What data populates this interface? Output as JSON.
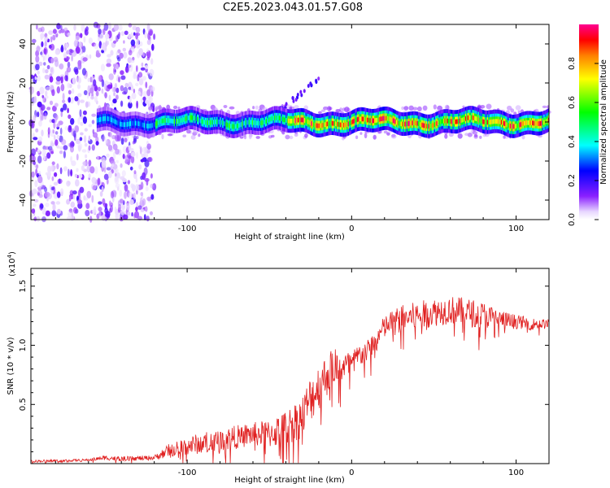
{
  "title": "C2E5.2023.043.01.57.G08",
  "chart_data": [
    {
      "type": "heatmap",
      "xlabel": "Height of straight line (km)",
      "ylabel": "Frequency (Hz)",
      "xlim": [
        -195,
        120
      ],
      "ylim": [
        -50,
        50
      ],
      "x_ticks": [
        -100,
        0,
        100
      ],
      "y_ticks": [
        -40,
        -20,
        0,
        20,
        40
      ],
      "colorbar": {
        "label": "Normalized spectral amplitude",
        "range": [
          0,
          1
        ],
        "ticks": [
          0.0,
          0.2,
          0.4,
          0.6,
          0.8
        ],
        "colormap": [
          "#ffffff",
          "#7a00ff",
          "#0000ff",
          "#00ffff",
          "#00ff00",
          "#ffff00",
          "#ff8000",
          "#ff0000",
          "#ff0090"
        ]
      },
      "description_points": {
        "noise_region_x": [
          -195,
          -120
        ],
        "trace_center_freq_hz": 0,
        "trace_x_start": -155,
        "secondary_trace": {
          "x": [
            -45,
            -20
          ],
          "y": [
            5,
            22
          ]
        },
        "peak_amplitude_region_x": [
          -40,
          100
        ]
      }
    },
    {
      "type": "line",
      "xlabel": "Height of straight line (km)",
      "ylabel": "SNR (10 * v/v)",
      "y_scale_label_base": "(x10",
      "y_scale_label_exp": "4",
      "y_scale_label_close": ")",
      "xlim": [
        -195,
        120
      ],
      "ylim": [
        0,
        1.65
      ],
      "x_ticks": [
        -100,
        0,
        100
      ],
      "y_ticks": [
        0.5,
        1.0,
        1.5
      ],
      "y_tick_labels": [
        "0.5",
        "1.0",
        "1.5"
      ],
      "series": [
        {
          "color": "#e02020",
          "x": [
            -195,
            -160,
            -150,
            -140,
            -120,
            -110,
            -100,
            -80,
            -60,
            -50,
            -40,
            -30,
            -25,
            -20,
            -15,
            -10,
            -5,
            0,
            5,
            10,
            15,
            20,
            25,
            30,
            40,
            50,
            60,
            70,
            80,
            90,
            100,
            110,
            120
          ],
          "y": [
            0.02,
            0.03,
            0.05,
            0.04,
            0.05,
            0.12,
            0.15,
            0.2,
            0.25,
            0.25,
            0.3,
            0.4,
            0.55,
            0.65,
            0.75,
            0.85,
            0.8,
            0.85,
            0.92,
            0.95,
            1.05,
            1.15,
            1.2,
            1.22,
            1.25,
            1.28,
            1.3,
            1.28,
            1.25,
            1.22,
            1.2,
            1.18,
            1.18
          ],
          "noise": [
            0.01,
            0.01,
            0.02,
            0.02,
            0.02,
            0.06,
            0.08,
            0.1,
            0.1,
            0.12,
            0.15,
            0.18,
            0.2,
            0.2,
            0.18,
            0.15,
            0.15,
            0.1,
            0.1,
            0.1,
            0.1,
            0.1,
            0.1,
            0.12,
            0.12,
            0.12,
            0.12,
            0.12,
            0.12,
            0.08,
            0.06,
            0.05,
            0.04
          ]
        }
      ]
    }
  ]
}
